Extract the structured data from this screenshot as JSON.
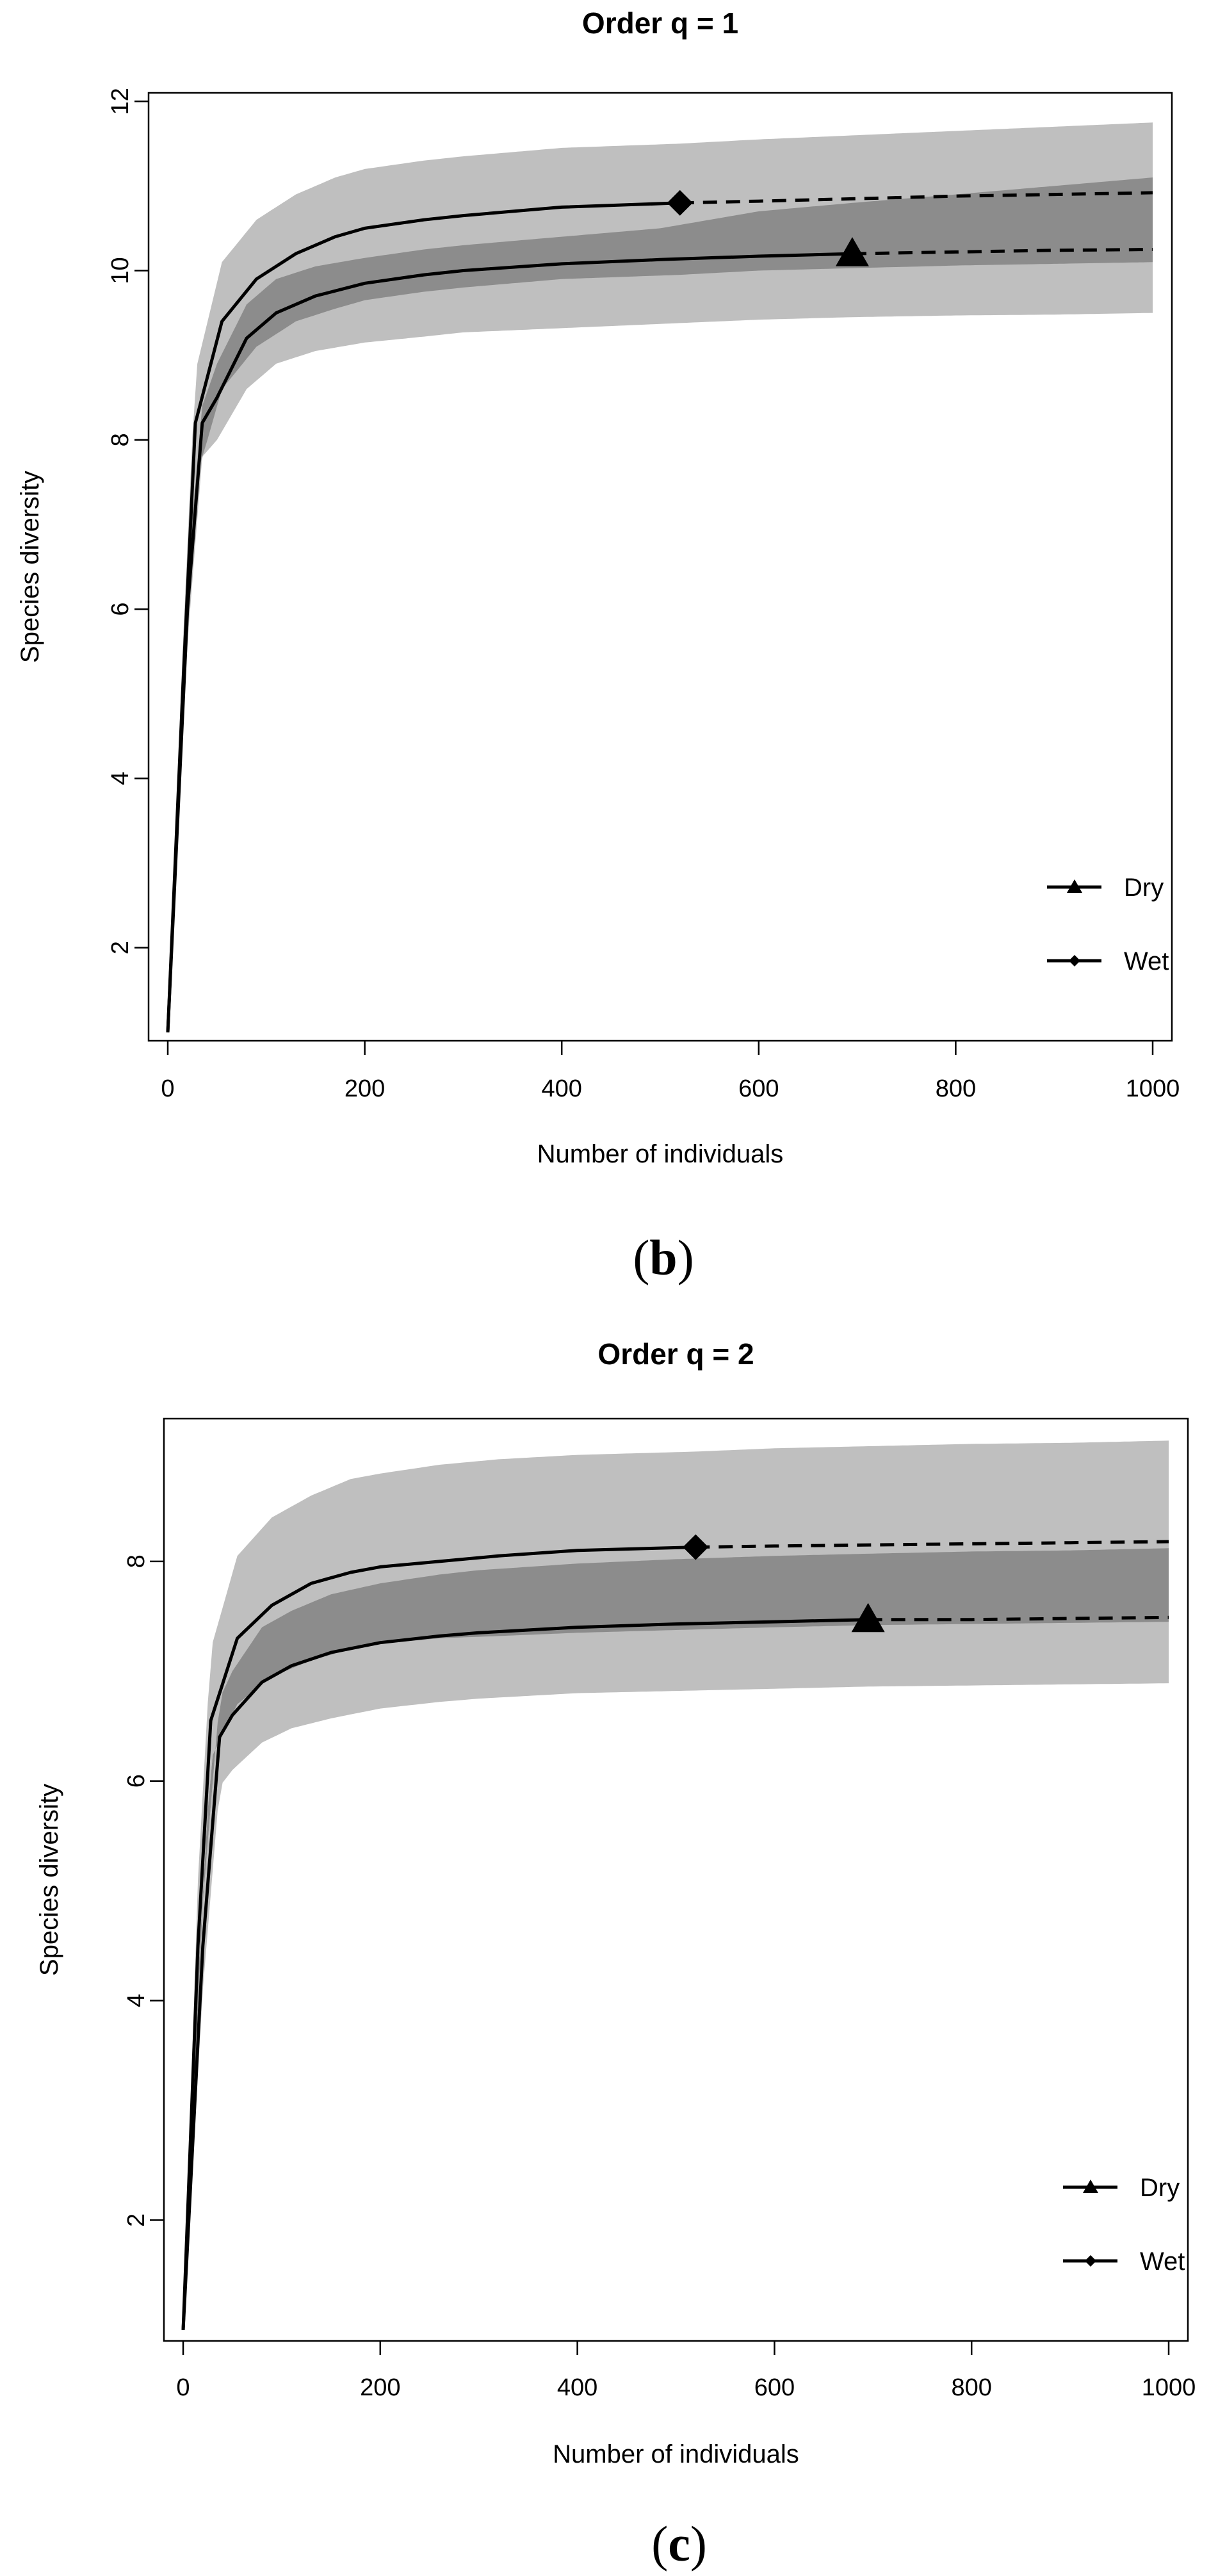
{
  "chart_data": [
    {
      "type": "line",
      "title": "Order q = 1",
      "xlabel": "Number of individuals",
      "ylabel": "Species diversity",
      "panel_label": "b",
      "xlim": [
        0,
        1000
      ],
      "ylim": [
        0.9,
        12.1
      ],
      "xticks": [
        0,
        200,
        400,
        600,
        800,
        1000
      ],
      "yticks": [
        2,
        4,
        6,
        8,
        10,
        12
      ],
      "legend": {
        "position": "bottom-right",
        "entries": [
          "Dry",
          "Wet"
        ]
      },
      "series": [
        {
          "name": "Dry",
          "marker": "triangle",
          "observed_x": 695,
          "x": [
            0,
            20,
            35,
            50,
            80,
            110,
            150,
            200,
            260,
            300,
            400,
            500,
            600,
            695,
            800,
            900,
            1000
          ],
          "y": [
            1.0,
            6.0,
            8.2,
            8.5,
            9.2,
            9.5,
            9.7,
            9.85,
            9.95,
            10.0,
            10.08,
            10.13,
            10.17,
            10.2,
            10.22,
            10.24,
            10.25
          ],
          "lower": [
            1.0,
            5.6,
            7.8,
            8.0,
            8.6,
            8.9,
            9.05,
            9.15,
            9.22,
            9.27,
            9.32,
            9.37,
            9.42,
            9.45,
            9.47,
            9.48,
            9.5
          ],
          "upper": [
            1.0,
            6.4,
            8.4,
            8.9,
            9.6,
            9.9,
            10.05,
            10.15,
            10.25,
            10.3,
            10.4,
            10.5,
            10.7,
            10.8,
            10.9,
            11.0,
            11.1
          ]
        },
        {
          "name": "Wet",
          "marker": "diamond",
          "observed_x": 520,
          "x": [
            0,
            15,
            28,
            55,
            90,
            130,
            170,
            200,
            260,
            300,
            400,
            520,
            600,
            700,
            800,
            900,
            1000
          ],
          "y": [
            1.0,
            5.0,
            8.2,
            9.4,
            9.9,
            10.2,
            10.4,
            10.5,
            10.6,
            10.65,
            10.75,
            10.8,
            10.82,
            10.85,
            10.88,
            10.9,
            10.92
          ],
          "lower": [
            1.0,
            4.6,
            7.5,
            8.6,
            9.1,
            9.4,
            9.55,
            9.65,
            9.75,
            9.8,
            9.9,
            9.95,
            10.0,
            10.03,
            10.06,
            10.08,
            10.1
          ],
          "upper": [
            1.0,
            5.5,
            8.8,
            10.1,
            10.6,
            10.9,
            11.1,
            11.2,
            11.3,
            11.35,
            11.45,
            11.5,
            11.55,
            11.6,
            11.65,
            11.7,
            11.75
          ]
        }
      ]
    },
    {
      "type": "line",
      "title": "Order q = 2",
      "xlabel": "Number of individuals",
      "ylabel": "Species diversity",
      "panel_label": "c",
      "xlim": [
        0,
        1000
      ],
      "ylim": [
        0.9,
        9.3
      ],
      "xticks": [
        0,
        200,
        400,
        600,
        800,
        1000
      ],
      "yticks": [
        2,
        4,
        6,
        8
      ],
      "legend": {
        "position": "bottom-right",
        "entries": [
          "Dry",
          "Wet"
        ]
      },
      "series": [
        {
          "name": "Dry",
          "marker": "triangle",
          "observed_x": 695,
          "x": [
            0,
            20,
            37,
            50,
            80,
            110,
            150,
            200,
            260,
            300,
            400,
            500,
            600,
            695,
            800,
            900,
            1000
          ],
          "y": [
            1.0,
            4.5,
            6.4,
            6.6,
            6.9,
            7.05,
            7.17,
            7.26,
            7.32,
            7.35,
            7.4,
            7.43,
            7.45,
            7.47,
            7.47,
            7.48,
            7.49
          ],
          "lower": [
            1.0,
            4.1,
            5.95,
            6.1,
            6.35,
            6.48,
            6.57,
            6.66,
            6.72,
            6.75,
            6.8,
            6.82,
            6.84,
            6.86,
            6.87,
            6.88,
            6.89
          ],
          "upper": [
            1.0,
            4.9,
            6.75,
            7.0,
            7.4,
            7.55,
            7.7,
            7.8,
            7.88,
            7.92,
            7.98,
            8.02,
            8.05,
            8.07,
            8.09,
            8.1,
            8.12
          ]
        },
        {
          "name": "Wet",
          "marker": "diamond",
          "observed_x": 520,
          "x": [
            0,
            15,
            28,
            55,
            90,
            130,
            170,
            200,
            260,
            320,
            400,
            520,
            600,
            700,
            800,
            900,
            1000
          ],
          "y": [
            1.0,
            4.5,
            6.55,
            7.3,
            7.6,
            7.8,
            7.9,
            7.95,
            8.0,
            8.05,
            8.1,
            8.13,
            8.14,
            8.15,
            8.16,
            8.17,
            8.18
          ],
          "lower": [
            1.0,
            4.2,
            6.2,
            6.7,
            6.95,
            7.1,
            7.2,
            7.25,
            7.3,
            7.32,
            7.35,
            7.38,
            7.4,
            7.42,
            7.43,
            7.44,
            7.45
          ],
          "upper": [
            1.0,
            5.1,
            7.2,
            8.05,
            8.4,
            8.6,
            8.75,
            8.8,
            8.88,
            8.93,
            8.97,
            9.0,
            9.03,
            9.05,
            9.07,
            9.08,
            9.1
          ]
        }
      ]
    }
  ],
  "colors": {
    "band_outer": "#bfbfbf",
    "band_inner": "#8c8c8c",
    "line": "#000000"
  }
}
